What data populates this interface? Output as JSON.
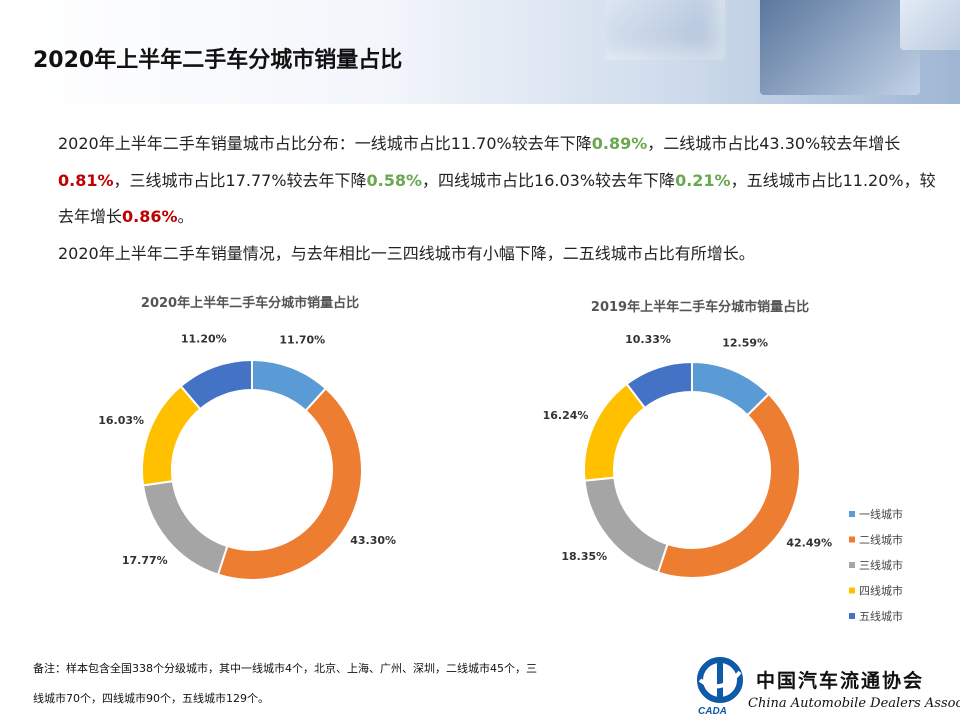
{
  "page": {
    "title": "2020年上半年二手车分城市销量占比"
  },
  "intro": {
    "p1_a": "2020年上半年二手车销量城市占比分布：一线城市占比11.70%较去年下降",
    "p1_b": "0.89%",
    "p1_c": "，二线城市占比43.30%较去年增长",
    "p1_d": "0.81%",
    "p1_e": "，三线城市占比17.77%较去年下降",
    "p1_f": "0.58%",
    "p1_g": "，四线城市占比16.03%较去年下降",
    "p1_h": "0.21%",
    "p1_i": "，五线城市占比11.20%，较去年增长",
    "p1_j": "0.86%",
    "p1_k": "。",
    "p2": "2020年上半年二手车销量情况，与去年相比一三四线城市有小幅下降，二五线城市占比有所增长。"
  },
  "colors": {
    "tier1": "#5b9bd5",
    "tier2": "#ed7d31",
    "tier3": "#a5a5a5",
    "tier4": "#ffc000",
    "tier5": "#4472c4",
    "decrease": "#6aa84f",
    "increase": "#c00000"
  },
  "chart_data": [
    {
      "type": "pie",
      "title": "2020年上半年二手车分城市销量占比",
      "categories": [
        "一线城市",
        "二线城市",
        "三线城市",
        "四线城市",
        "五线城市"
      ],
      "values": [
        11.7,
        43.3,
        17.77,
        16.03,
        11.2
      ],
      "labels": [
        "11.70%",
        "43.30%",
        "17.77%",
        "16.03%",
        "11.20%"
      ]
    },
    {
      "type": "pie",
      "title": "2019年上半年二手车分城市销量占比",
      "categories": [
        "一线城市",
        "二线城市",
        "三线城市",
        "四线城市",
        "五线城市"
      ],
      "values": [
        12.59,
        42.49,
        18.35,
        16.24,
        10.33
      ],
      "labels": [
        "12.59%",
        "42.49%",
        "18.35%",
        "16.24%",
        "10.33%"
      ],
      "legend": "right"
    }
  ],
  "note": {
    "line1": "备注：样本包含全国338个分级城市，其中一线城市4个，北京、上海、广州、深圳，二线城市45个，三",
    "line2": "线城市70个，四线城市90个，五线城市129个。"
  },
  "logo": {
    "cn": "中国汽车流通协会",
    "en": "China Automobile Dealers Association",
    "mark": "CADA"
  }
}
